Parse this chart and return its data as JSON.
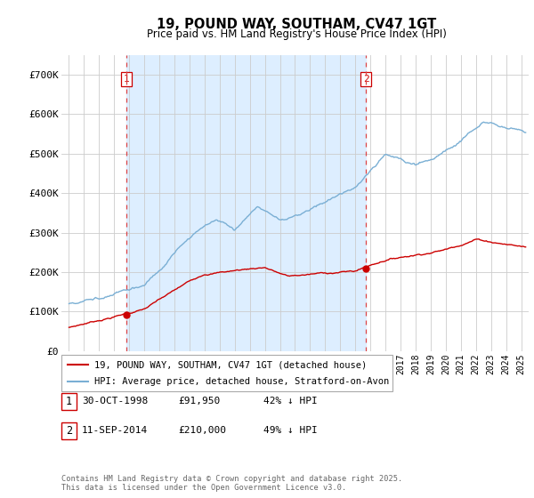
{
  "title": "19, POUND WAY, SOUTHAM, CV47 1GT",
  "subtitle": "Price paid vs. HM Land Registry's House Price Index (HPI)",
  "red_label": "19, POUND WAY, SOUTHAM, CV47 1GT (detached house)",
  "blue_label": "HPI: Average price, detached house, Stratford-on-Avon",
  "annotation1_num": "1",
  "annotation1_date": "30-OCT-1998",
  "annotation1_price": "£91,950",
  "annotation1_hpi": "42% ↓ HPI",
  "annotation2_num": "2",
  "annotation2_date": "11-SEP-2014",
  "annotation2_price": "£210,000",
  "annotation2_hpi": "49% ↓ HPI",
  "footer": "Contains HM Land Registry data © Crown copyright and database right 2025.\nThis data is licensed under the Open Government Licence v3.0.",
  "red_color": "#cc0000",
  "blue_color": "#7aafd4",
  "vline_color": "#dd4444",
  "bg_color": "#ffffff",
  "grid_color": "#cccccc",
  "shade_color": "#ddeeff",
  "ylim": [
    0,
    750000
  ],
  "yticks": [
    0,
    100000,
    200000,
    300000,
    400000,
    500000,
    600000,
    700000
  ],
  "ytick_labels": [
    "£0",
    "£100K",
    "£200K",
    "£300K",
    "£400K",
    "£500K",
    "£600K",
    "£700K"
  ],
  "sale1_x": 1998.83,
  "sale1_y": 91950,
  "sale2_x": 2014.7,
  "sale2_y": 210000,
  "xmin": 1994.5,
  "xmax": 2025.5
}
